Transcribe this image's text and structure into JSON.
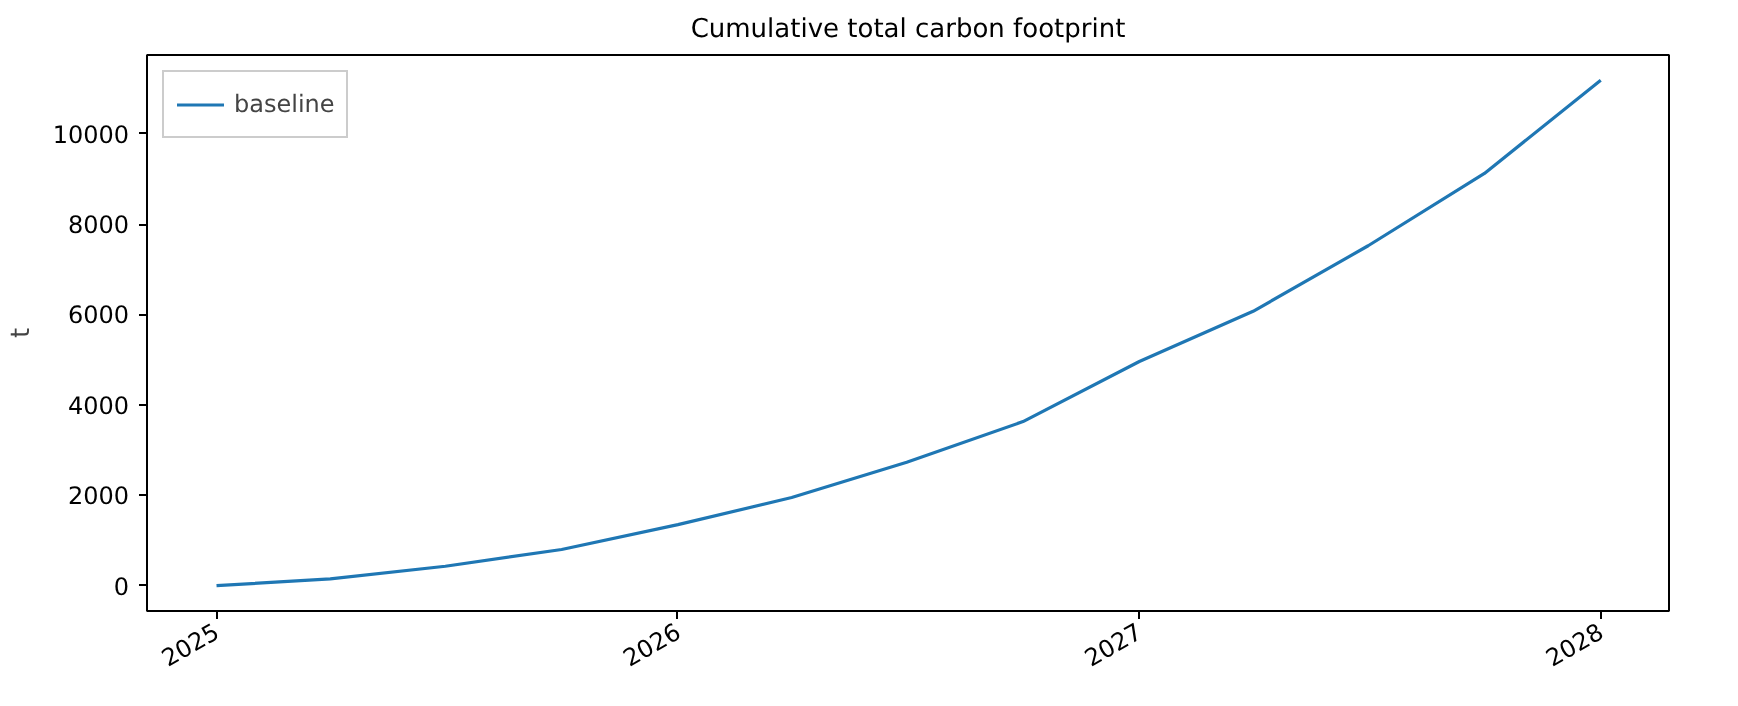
{
  "chart_data": {
    "type": "line",
    "title": "Cumulative total carbon footprint",
    "ylabel": "t",
    "x": [
      "2025-01-01",
      "2025-04-01",
      "2025-07-01",
      "2025-10-01",
      "2026-01-01",
      "2026-04-01",
      "2026-07-01",
      "2026-10-01",
      "2027-01-01",
      "2027-04-01",
      "2027-07-01",
      "2027-10-01",
      "2028-01-01"
    ],
    "series": [
      {
        "name": "baseline",
        "color": "#1f77b4",
        "values": [
          0,
          150,
          430,
          800,
          1350,
          1950,
          2730,
          3630,
          4960,
          6070,
          7520,
          9120,
          11180
        ]
      }
    ],
    "xlim": [
      "2024-11-07",
      "2028-02-24"
    ],
    "ylim": [
      -560,
      11740
    ],
    "xticks": [
      {
        "value": "2025-01-01",
        "label": "2025"
      },
      {
        "value": "2026-01-01",
        "label": "2026"
      },
      {
        "value": "2027-01-01",
        "label": "2027"
      },
      {
        "value": "2028-01-01",
        "label": "2028"
      }
    ],
    "yticks": [
      0,
      2000,
      4000,
      6000,
      8000,
      10000
    ],
    "legend": "top left",
    "grid": false
  }
}
